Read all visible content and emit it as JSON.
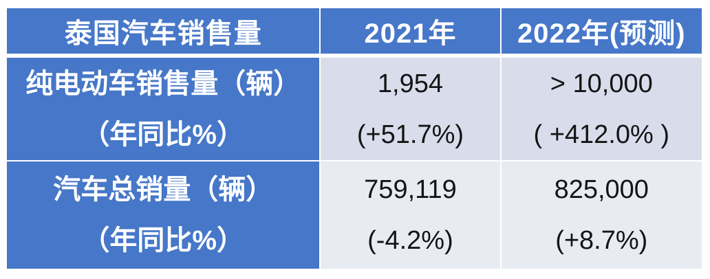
{
  "chart_data": {
    "type": "table",
    "title": "泰国汽车销售量",
    "columns": [
      "泰国汽车销售量",
      "2021年",
      "2022年(预测)"
    ],
    "rows": [
      [
        "纯电动车销售量（辆）（年同比%）",
        "1,954 (+51.7%)",
        "> 10,000 ( +412.0% )"
      ],
      [
        "汽车总销量（辆）（年同比%）",
        "759,119 (-4.2%)",
        "825,000 (+8.7%)"
      ]
    ],
    "values": {
      "bev_sales_2021": 1954,
      "bev_yoy_2021_pct": 51.7,
      "bev_sales_2022_forecast_min": 10000,
      "bev_yoy_2022_pct": 412.0,
      "total_sales_2021": 759119,
      "total_yoy_2021_pct": -4.2,
      "total_sales_2022_forecast": 825000,
      "total_yoy_2022_pct": 8.7
    },
    "layout_hints": {
      "banded_rows": true,
      "grid_color": "#FFFFFF"
    }
  },
  "table": {
    "header": {
      "title": "泰国汽车销售量",
      "col_2021": "2021年",
      "col_2022": "2022年(预测)"
    },
    "rows": [
      {
        "label_line1": "纯电动车销售量（辆）",
        "label_line2": "（年同比%）",
        "v2021_line1": "1,954",
        "v2021_line2": "(+51.7%)",
        "v2022_line1": "> 10,000",
        "v2022_line2": "( +412.0% )"
      },
      {
        "label_line1": "汽车总销量（辆）",
        "label_line2": "（年同比%）",
        "v2021_line1": "759,119",
        "v2021_line2": "(-4.2%)",
        "v2022_line1": "825,000",
        "v2022_line2": "(+8.7%)"
      }
    ],
    "colors": {
      "header_blue": "#4677C8",
      "band_dark": "#D9DDEB",
      "band_light": "#E9EBF3",
      "grid_white": "#FFFFFF",
      "header_text": "#FFFFFF",
      "body_text": "#141414"
    }
  }
}
